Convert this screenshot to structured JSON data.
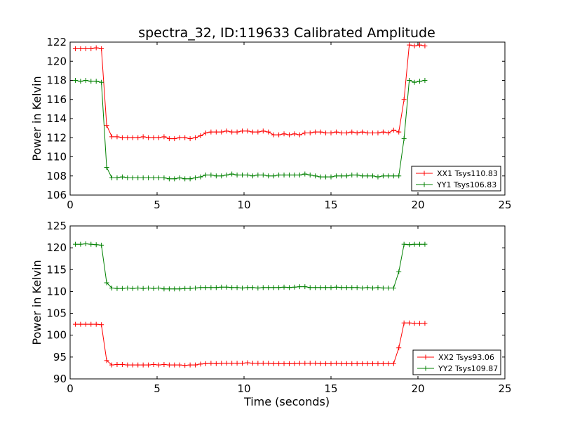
{
  "chart_data": {
    "type": "line",
    "title": "spectra_32, ID:119633 Calibrated Amplitude",
    "xlabel": "Time (seconds)",
    "legend_position": "lower-right",
    "grid": false,
    "axes": [
      {
        "ylabel": "Power in Kelvin",
        "xlim": [
          0,
          25
        ],
        "ylim": [
          106,
          122
        ],
        "xticks": [
          "0",
          "5",
          "10",
          "15",
          "20",
          "25"
        ],
        "yticks": [
          "106",
          "108",
          "110",
          "112",
          "114",
          "116",
          "118",
          "120",
          "122"
        ],
        "series": [
          {
            "name": "XX1 Tsys110.83",
            "color": "#ff0000",
            "x": [
              0.3,
              0.6,
              0.9,
              1.2,
              1.5,
              1.8,
              2.1,
              2.4,
              2.7,
              3.0,
              3.3,
              3.6,
              3.9,
              4.2,
              4.5,
              4.8,
              5.1,
              5.4,
              5.7,
              6.0,
              6.3,
              6.6,
              6.9,
              7.2,
              7.5,
              7.8,
              8.1,
              8.4,
              8.7,
              9.0,
              9.3,
              9.6,
              9.9,
              10.2,
              10.5,
              10.8,
              11.1,
              11.4,
              11.7,
              12.0,
              12.3,
              12.6,
              12.9,
              13.2,
              13.5,
              13.8,
              14.1,
              14.4,
              14.7,
              15.0,
              15.3,
              15.6,
              15.9,
              16.2,
              16.5,
              16.8,
              17.1,
              17.4,
              17.7,
              18.0,
              18.3,
              18.6,
              18.9,
              19.2,
              19.5,
              19.8,
              20.1,
              20.4
            ],
            "y": [
              121.3,
              121.3,
              121.3,
              121.3,
              121.4,
              121.3,
              113.3,
              112.1,
              112.1,
              112.0,
              112.0,
              112.0,
              112.0,
              112.1,
              112.0,
              112.0,
              112.0,
              112.1,
              111.9,
              111.9,
              112.0,
              112.0,
              111.9,
              112.0,
              112.2,
              112.5,
              112.6,
              112.6,
              112.6,
              112.7,
              112.6,
              112.6,
              112.7,
              112.7,
              112.6,
              112.6,
              112.7,
              112.6,
              112.3,
              112.3,
              112.4,
              112.3,
              112.4,
              112.3,
              112.5,
              112.5,
              112.6,
              112.6,
              112.5,
              112.5,
              112.6,
              112.5,
              112.5,
              112.6,
              112.5,
              112.6,
              112.5,
              112.5,
              112.5,
              112.6,
              112.5,
              112.8,
              112.6,
              116.0,
              121.7,
              121.6,
              121.7,
              121.6
            ]
          },
          {
            "name": "YY1 Tsys106.83",
            "color": "#008000",
            "x": [
              0.3,
              0.6,
              0.9,
              1.2,
              1.5,
              1.8,
              2.1,
              2.4,
              2.7,
              3.0,
              3.3,
              3.6,
              3.9,
              4.2,
              4.5,
              4.8,
              5.1,
              5.4,
              5.7,
              6.0,
              6.3,
              6.6,
              6.9,
              7.2,
              7.5,
              7.8,
              8.1,
              8.4,
              8.7,
              9.0,
              9.3,
              9.6,
              9.9,
              10.2,
              10.5,
              10.8,
              11.1,
              11.4,
              11.7,
              12.0,
              12.3,
              12.6,
              12.9,
              13.2,
              13.5,
              13.8,
              14.1,
              14.4,
              14.7,
              15.0,
              15.3,
              15.6,
              15.9,
              16.2,
              16.5,
              16.8,
              17.1,
              17.4,
              17.7,
              18.0,
              18.3,
              18.6,
              18.9,
              19.2,
              19.5,
              19.8,
              20.1,
              20.4
            ],
            "y": [
              118.0,
              117.9,
              118.0,
              117.9,
              117.9,
              117.8,
              108.9,
              107.8,
              107.8,
              107.9,
              107.8,
              107.8,
              107.8,
              107.8,
              107.8,
              107.8,
              107.8,
              107.8,
              107.7,
              107.7,
              107.8,
              107.7,
              107.7,
              107.8,
              107.9,
              108.1,
              108.1,
              108.0,
              108.0,
              108.1,
              108.2,
              108.1,
              108.1,
              108.1,
              108.0,
              108.1,
              108.1,
              108.0,
              108.0,
              108.1,
              108.1,
              108.1,
              108.1,
              108.1,
              108.2,
              108.1,
              108.0,
              107.9,
              107.9,
              107.9,
              108.0,
              108.0,
              108.0,
              108.1,
              108.1,
              108.0,
              108.0,
              108.0,
              107.9,
              108.0,
              108.0,
              108.0,
              108.0,
              111.9,
              118.0,
              117.8,
              117.9,
              118.0
            ]
          }
        ]
      },
      {
        "ylabel": "Power in Kelvin",
        "xlim": [
          0,
          25
        ],
        "ylim": [
          90,
          125
        ],
        "xticks": [
          "0",
          "5",
          "10",
          "15",
          "20",
          "25"
        ],
        "yticks": [
          "90",
          "95",
          "100",
          "105",
          "110",
          "115",
          "120",
          "125"
        ],
        "series": [
          {
            "name": "XX2 Tsys93.06",
            "color": "#ff0000",
            "x": [
              0.3,
              0.6,
              0.9,
              1.2,
              1.5,
              1.8,
              2.1,
              2.4,
              2.7,
              3.0,
              3.3,
              3.6,
              3.9,
              4.2,
              4.5,
              4.8,
              5.1,
              5.4,
              5.7,
              6.0,
              6.3,
              6.6,
              6.9,
              7.2,
              7.5,
              7.8,
              8.1,
              8.4,
              8.7,
              9.0,
              9.3,
              9.6,
              9.9,
              10.2,
              10.5,
              10.8,
              11.1,
              11.4,
              11.7,
              12.0,
              12.3,
              12.6,
              12.9,
              13.2,
              13.5,
              13.8,
              14.1,
              14.4,
              14.7,
              15.0,
              15.3,
              15.6,
              15.9,
              16.2,
              16.5,
              16.8,
              17.1,
              17.4,
              17.7,
              18.0,
              18.3,
              18.6,
              18.9,
              19.2,
              19.5,
              19.8,
              20.1,
              20.4
            ],
            "y": [
              102.5,
              102.5,
              102.5,
              102.5,
              102.5,
              102.4,
              94.2,
              93.2,
              93.3,
              93.3,
              93.2,
              93.2,
              93.2,
              93.2,
              93.2,
              93.3,
              93.2,
              93.3,
              93.2,
              93.2,
              93.2,
              93.1,
              93.2,
              93.2,
              93.4,
              93.5,
              93.6,
              93.5,
              93.6,
              93.6,
              93.6,
              93.6,
              93.6,
              93.7,
              93.6,
              93.6,
              93.6,
              93.6,
              93.5,
              93.5,
              93.5,
              93.5,
              93.5,
              93.6,
              93.6,
              93.6,
              93.6,
              93.5,
              93.5,
              93.5,
              93.6,
              93.5,
              93.5,
              93.5,
              93.5,
              93.5,
              93.5,
              93.5,
              93.5,
              93.5,
              93.5,
              93.5,
              97.1,
              102.8,
              102.8,
              102.7,
              102.7,
              102.7
            ]
          },
          {
            "name": "YY2 Tsys109.87",
            "color": "#008000",
            "x": [
              0.3,
              0.6,
              0.9,
              1.2,
              1.5,
              1.8,
              2.1,
              2.4,
              2.7,
              3.0,
              3.3,
              3.6,
              3.9,
              4.2,
              4.5,
              4.8,
              5.1,
              5.4,
              5.7,
              6.0,
              6.3,
              6.6,
              6.9,
              7.2,
              7.5,
              7.8,
              8.1,
              8.4,
              8.7,
              9.0,
              9.3,
              9.6,
              9.9,
              10.2,
              10.5,
              10.8,
              11.1,
              11.4,
              11.7,
              12.0,
              12.3,
              12.6,
              12.9,
              13.2,
              13.5,
              13.8,
              14.1,
              14.4,
              14.7,
              15.0,
              15.3,
              15.6,
              15.9,
              16.2,
              16.5,
              16.8,
              17.1,
              17.4,
              17.7,
              18.0,
              18.3,
              18.6,
              18.9,
              19.2,
              19.5,
              19.8,
              20.1,
              20.4
            ],
            "y": [
              120.8,
              120.8,
              120.9,
              120.8,
              120.7,
              120.6,
              112.0,
              110.8,
              110.7,
              110.7,
              110.8,
              110.7,
              110.8,
              110.7,
              110.8,
              110.7,
              110.8,
              110.6,
              110.6,
              110.6,
              110.6,
              110.7,
              110.7,
              110.8,
              110.9,
              110.9,
              110.9,
              110.9,
              111.0,
              111.0,
              110.9,
              110.9,
              110.8,
              110.9,
              110.9,
              110.8,
              110.9,
              110.9,
              110.9,
              110.9,
              111.0,
              110.9,
              111.0,
              111.1,
              111.1,
              110.9,
              110.9,
              110.9,
              110.9,
              110.9,
              111.0,
              110.9,
              110.9,
              110.9,
              110.9,
              110.8,
              110.9,
              110.8,
              110.9,
              110.8,
              110.8,
              110.8,
              114.5,
              120.8,
              120.7,
              120.8,
              120.8,
              120.8
            ]
          }
        ]
      }
    ]
  }
}
